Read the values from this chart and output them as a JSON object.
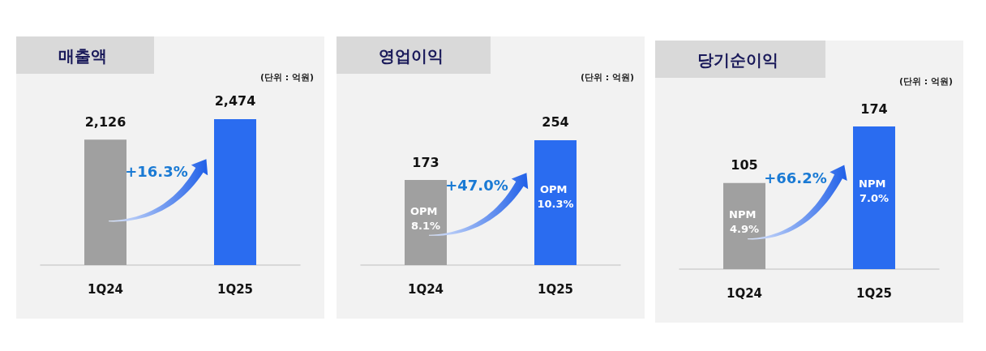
{
  "chart_data": [
    {
      "type": "bar",
      "title": "매출액",
      "subtitle": "(단위 : 억원)",
      "categories": [
        "1Q24",
        "1Q25"
      ],
      "values": [
        2126,
        2474
      ],
      "colors": [
        "#a0a0a0",
        "#2a6cf0"
      ],
      "value_labels": [
        "2,126",
        "2,474"
      ],
      "annotations": [
        "+16.3%"
      ]
    },
    {
      "type": "bar",
      "title": "영업이익",
      "subtitle": "(단위 : 억원)",
      "categories": [
        "1Q24",
        "1Q25"
      ],
      "values": [
        173,
        254
      ],
      "colors": [
        "#a0a0a0",
        "#2a6cf0"
      ],
      "value_labels": [
        "173",
        "254"
      ],
      "annotations": [
        "+47.0%",
        "OPM 8.1%",
        "OPM 10.3%"
      ]
    },
    {
      "type": "bar",
      "title": "당기순이익",
      "subtitle": "(단위 : 억원)",
      "categories": [
        "1Q24",
        "1Q25"
      ],
      "values": [
        105,
        174
      ],
      "colors": [
        "#a0a0a0",
        "#2a6cf0"
      ],
      "value_labels": [
        "105",
        "174"
      ],
      "annotations": [
        "+66.2%",
        "NPM 4.9%",
        "NPM 7.0%"
      ]
    }
  ]
}
